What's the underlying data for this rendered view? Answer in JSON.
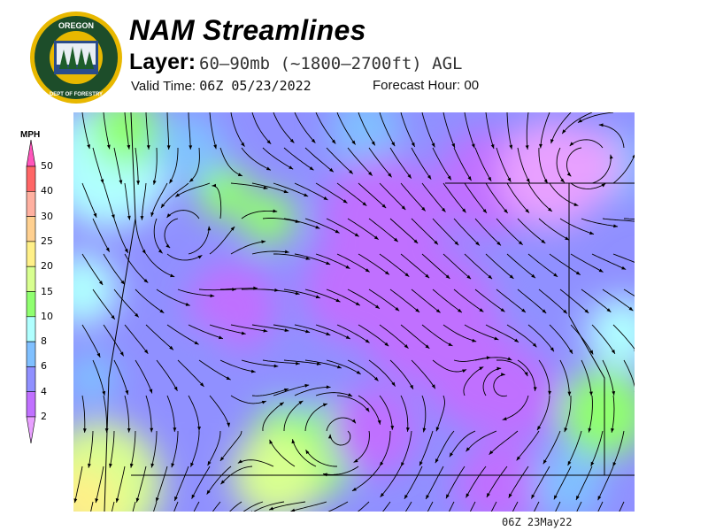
{
  "logo": {
    "text_top": "OREGON",
    "text_bottom": "DEPARTMENT OF FORESTRY"
  },
  "header": {
    "title": "NAM Streamlines",
    "layer_label": "Layer:",
    "layer_value": "60–90mb (~1800–2700ft) AGL",
    "valid_label": "Valid Time:",
    "valid_value": "06Z 05/23/2022",
    "forecast_label": "Forecast Hour:",
    "forecast_value": "00"
  },
  "legend": {
    "unit": "MPH",
    "bins": [
      {
        "label": "50",
        "color": "#ff6666"
      },
      {
        "label": "40",
        "color": "#ffb0a0"
      },
      {
        "label": "30",
        "color": "#ffd090"
      },
      {
        "label": "25",
        "color": "#fff088"
      },
      {
        "label": "20",
        "color": "#d8ff90"
      },
      {
        "label": "15",
        "color": "#90ff70"
      },
      {
        "label": "10",
        "color": "#b0ffff"
      },
      {
        "label": "8",
        "color": "#80c0ff"
      },
      {
        "label": "6",
        "color": "#9090ff"
      },
      {
        "label": "4",
        "color": "#c070ff"
      },
      {
        "label": "2",
        "color": "#e8a0ff"
      }
    ],
    "top_arrow_color": "#ff55bb"
  },
  "footer": {
    "stamp": "06Z 23May22"
  }
}
